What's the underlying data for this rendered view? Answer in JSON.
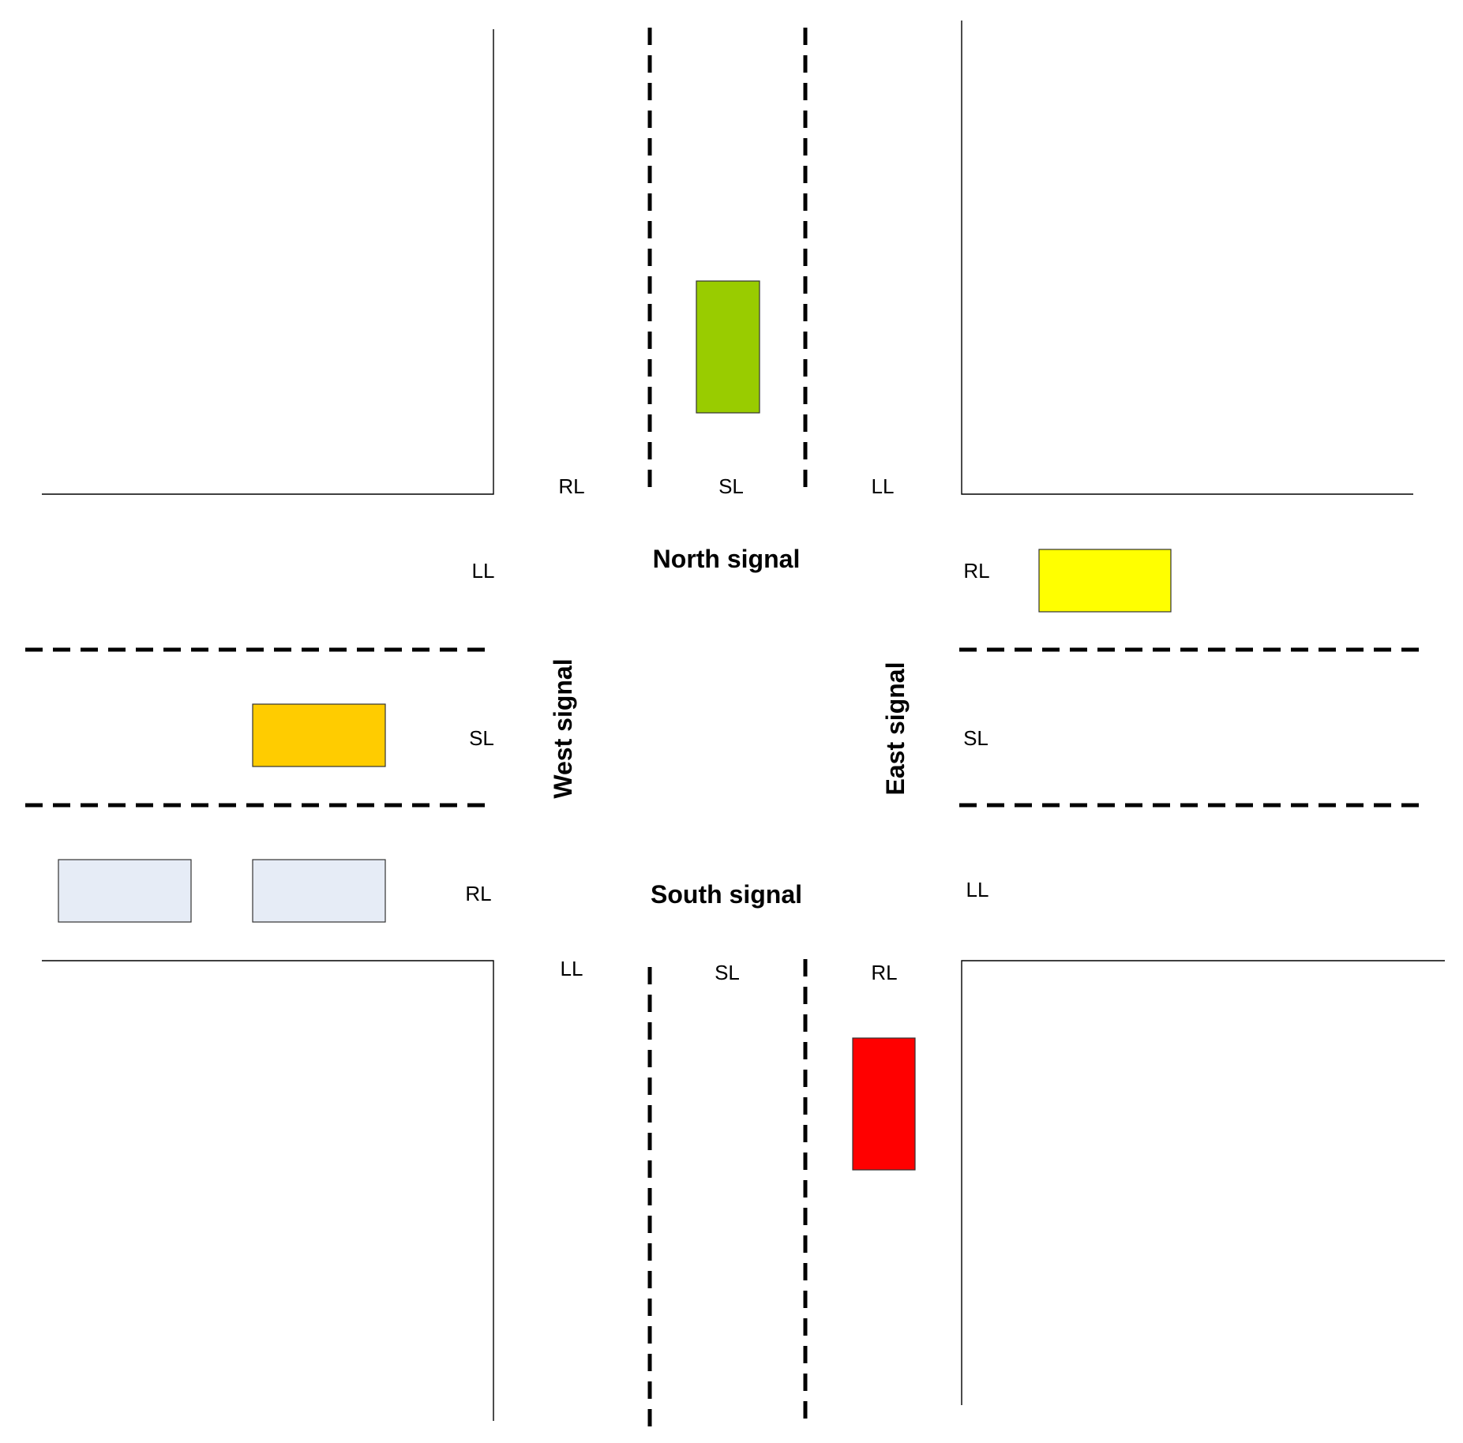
{
  "north": {
    "lanes": [
      "RL",
      "SL",
      "LL"
    ],
    "signal": "North signal"
  },
  "south": {
    "lanes": [
      "LL",
      "SL",
      "RL"
    ],
    "signal": "South signal"
  },
  "west": {
    "lanes": [
      "LL",
      "SL",
      "RL"
    ],
    "signal": "West signal"
  },
  "east": {
    "lanes": [
      "RL",
      "SL",
      "LL"
    ],
    "signal": "East signal"
  },
  "vehicles": [
    {
      "name": "vehicle-north-straight",
      "approach": "north",
      "lane": "SL",
      "color": "#99CC00"
    },
    {
      "name": "vehicle-east-right",
      "approach": "east",
      "lane": "RL",
      "color": "#FFFF00"
    },
    {
      "name": "vehicle-west-straight",
      "approach": "west",
      "lane": "SL",
      "color": "#FFCC00"
    },
    {
      "name": "vehicle-west-right-1",
      "approach": "west",
      "lane": "RL",
      "color": "#E6ECF6"
    },
    {
      "name": "vehicle-west-right-2",
      "approach": "west",
      "lane": "RL",
      "color": "#E6ECF6"
    },
    {
      "name": "vehicle-south-right",
      "approach": "south",
      "lane": "RL",
      "color": "#FF0000"
    }
  ]
}
